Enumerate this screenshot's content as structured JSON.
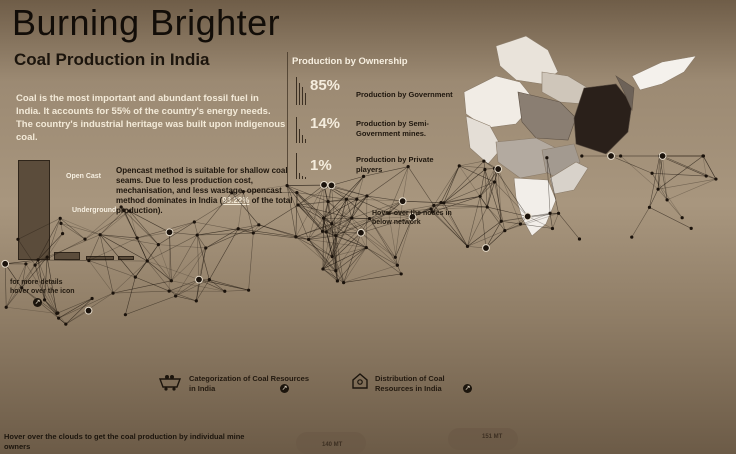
{
  "header": {
    "title": "Burning Brighter",
    "subtitle": "Coal Production in India"
  },
  "intro": {
    "text": "Coal is the most important and abundant fossil fuel in India. It accounts for 55% of the country's energy needs. The country's industrial heritage was built upon indigenous coal."
  },
  "ownership": {
    "title": "Production by Ownership",
    "rows": [
      {
        "pct": "85%",
        "label": "Production by Government"
      },
      {
        "pct": "14%",
        "label": "Production by Semi-Government mines."
      },
      {
        "pct": "1%",
        "label": "Production by Private players"
      }
    ]
  },
  "mining_method": {
    "bars": [
      {
        "label": "Open Cast",
        "share": 0.9322
      },
      {
        "label": "Underground",
        "share": 0.06
      },
      {
        "label": "",
        "share": 0.01
      },
      {
        "label": "",
        "share": 0.004
      }
    ],
    "text_before": "Opencast method is suitable for shallow coal seams. Due to less production cost, mechanisation, and less wastage, opencast method dominates in India (",
    "text_highlight": "93.22%",
    "text_after": " of the total production)."
  },
  "network": {
    "hint": "Hover over the nodes in below network"
  },
  "details": {
    "hint": "for more details hover over the icon",
    "icon": "arrow-icon"
  },
  "links": {
    "categorization": "Categorization of Coal Resources in India",
    "distribution": "Distribution of Coal Resources in India"
  },
  "footer": {
    "hint": "Hover over the clouds to get the coal production  by individual mine owners",
    "cloud1": "140 MT",
    "cloud2": "151 MT"
  },
  "colors": {
    "background": "#a8967e",
    "text_dark": "#1a140d",
    "text_light": "#f3ead8",
    "map_darkest": "#2a201a"
  }
}
